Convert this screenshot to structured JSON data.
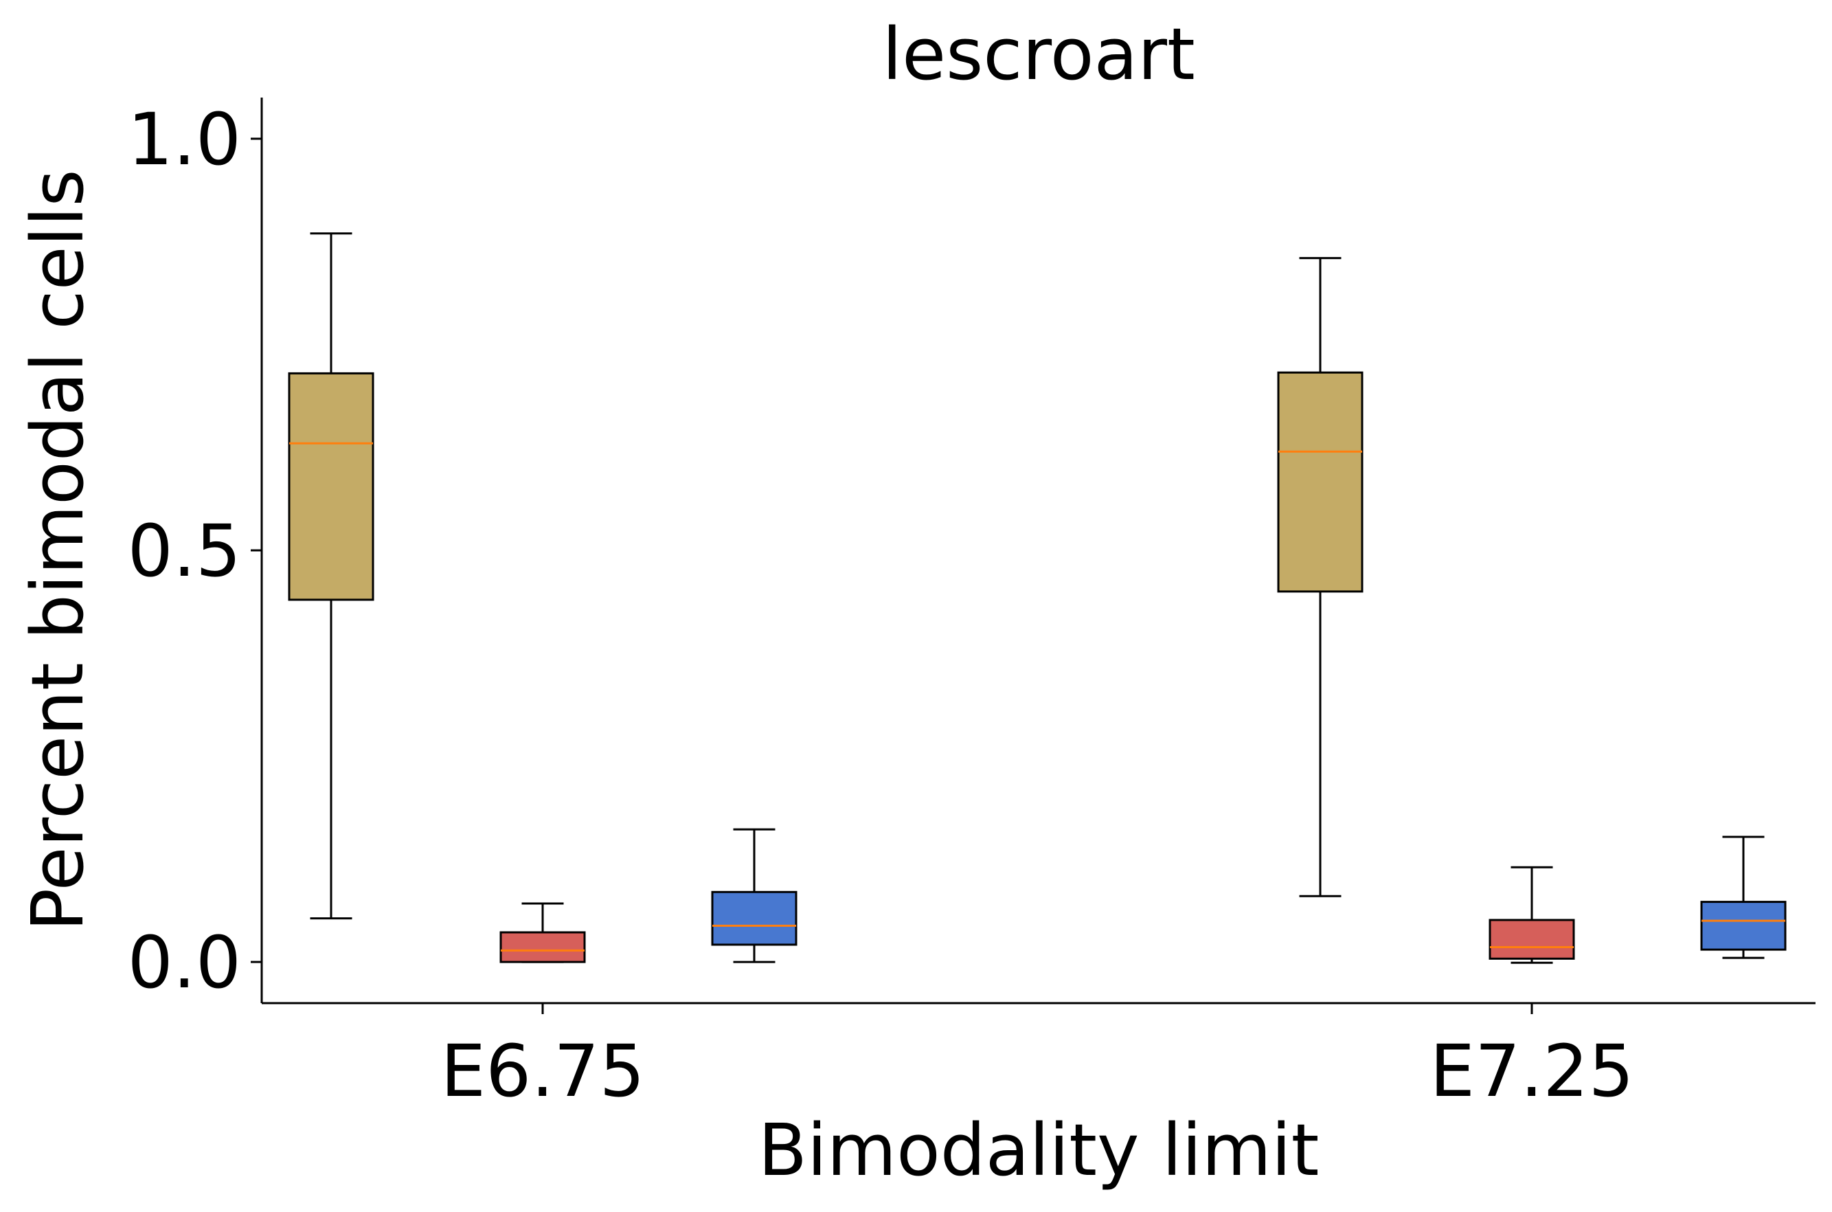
{
  "chart_data": {
    "type": "box",
    "title": "lescroart",
    "xlabel": "Bimodality limit",
    "ylabel": "Percent bimodal cells",
    "categories": [
      "E6.75",
      "E7.25"
    ],
    "ylim": [
      -0.05,
      1.05
    ],
    "yticks": [
      0.0,
      0.5,
      1.0
    ],
    "ytick_labels": [
      "0.0",
      "0.5",
      "1.0"
    ],
    "grid": false,
    "legend": "none",
    "median_color": "#ff7f0e",
    "series": [
      {
        "color": "#c4ab66",
        "boxes": [
          {
            "whislo": 0.053,
            "q1": 0.44,
            "med": 0.63,
            "q3": 0.715,
            "whishi": 0.885
          },
          {
            "whislo": 0.08,
            "q1": 0.45,
            "med": 0.62,
            "q3": 0.716,
            "whishi": 0.855
          }
        ]
      },
      {
        "color": "#d65f5a",
        "boxes": [
          {
            "whislo": 0.0,
            "q1": 0.0,
            "med": 0.014,
            "q3": 0.036,
            "whishi": 0.071
          },
          {
            "whislo": -0.001,
            "q1": 0.004,
            "med": 0.018,
            "q3": 0.051,
            "whishi": 0.115
          }
        ]
      },
      {
        "color": "#4878d0",
        "boxes": [
          {
            "whislo": 0.0,
            "q1": 0.021,
            "med": 0.044,
            "q3": 0.085,
            "whishi": 0.161
          },
          {
            "whislo": 0.005,
            "q1": 0.015,
            "med": 0.05,
            "q3": 0.073,
            "whishi": 0.152
          }
        ]
      }
    ]
  }
}
